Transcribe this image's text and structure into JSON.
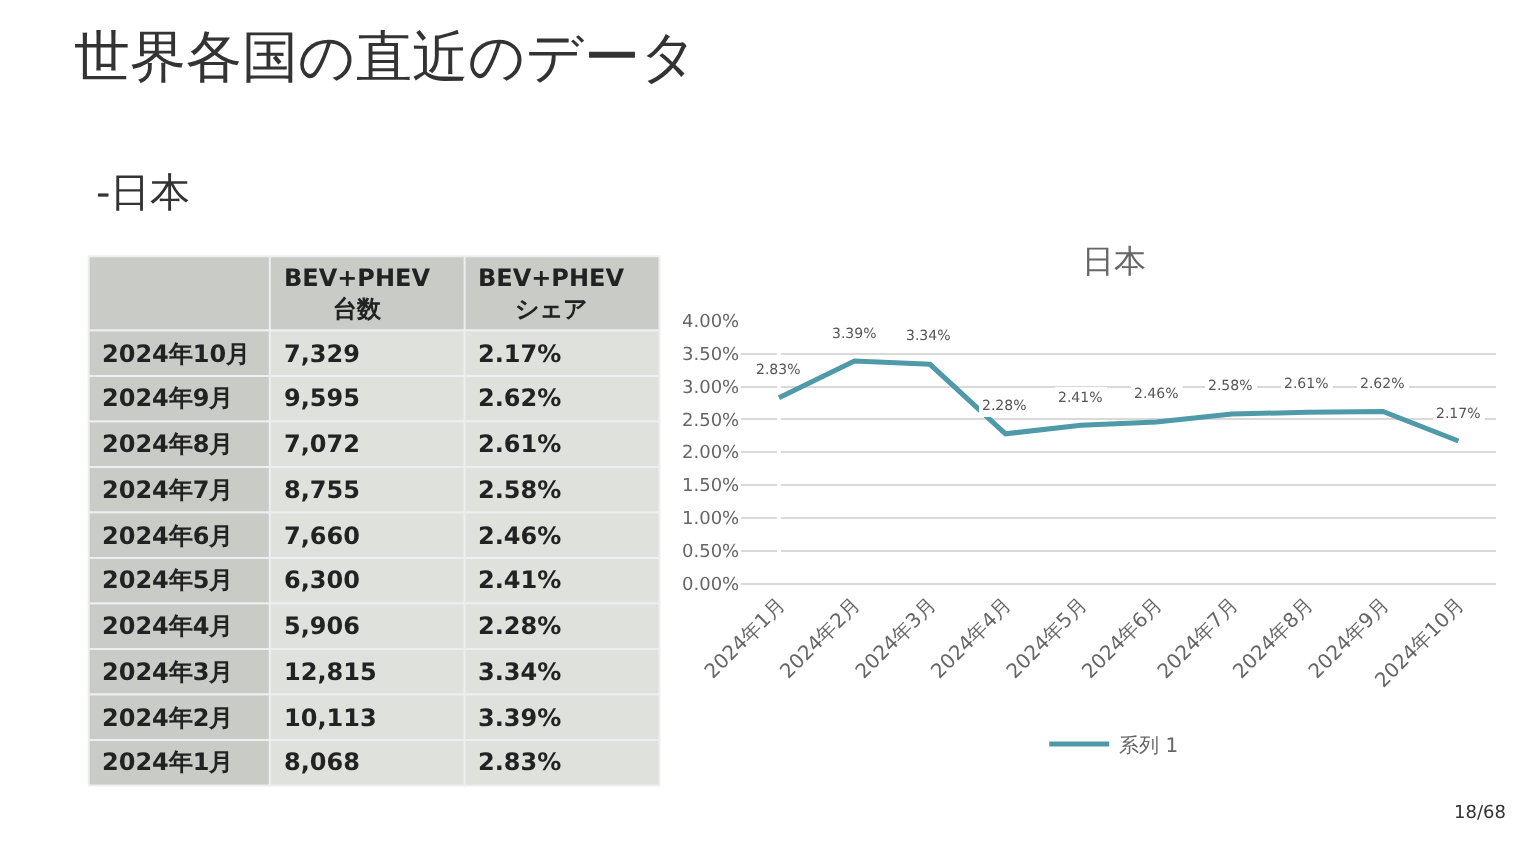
{
  "chart_data": [
    {
      "type": "other",
      "title": "世界各国の直近のデータ",
      "subtitle": "-日本",
      "categories": [
        "BEV+PHEV\n台数",
        "BEV+PHEV\nシェア"
      ],
      "y_categories": [
        "2024年10月",
        "2024年9月",
        "2024年8月",
        "2024年7月",
        "2024年6月",
        "2024年5月",
        "2024年4月",
        "2024年3月",
        "2024年2月",
        "2024年1月"
      ],
      "cells": [
        [
          "7,329",
          "2.17%"
        ],
        [
          "9,595",
          "2.62%"
        ],
        [
          "7,072",
          "2.61%"
        ],
        [
          "8,755",
          "2.58%"
        ],
        [
          "7,660",
          "2.46%"
        ],
        [
          "6,300",
          "2.41%"
        ],
        [
          "5,906",
          "2.28%"
        ],
        [
          "12,815",
          "3.34%"
        ],
        [
          "10,113",
          "3.39%"
        ],
        [
          "8,068",
          "2.83%"
        ]
      ]
    },
    {
      "type": "line",
      "title": "日本",
      "categories": [
        "2024年1月",
        "2024年2月",
        "2024年3月",
        "2024年4月",
        "2024年5月",
        "2024年6月",
        "2024年7月",
        "2024年8月",
        "2024年9月",
        "2024年10月"
      ],
      "series": [
        {
          "name": "系列 1",
          "color": "#4e9aa8",
          "values": [
            2.83,
            3.39,
            3.34,
            2.28,
            2.41,
            2.46,
            2.58,
            2.61,
            2.62,
            2.17
          ],
          "value_labels": [
            "2.83%",
            "3.39%",
            "3.34%",
            "2.28%",
            "2.41%",
            "2.46%",
            "2.58%",
            "2.61%",
            "2.62%",
            "2.17%"
          ]
        }
      ],
      "ylim": [
        0,
        4
      ],
      "yticks": [
        {
          "value": 0,
          "label": "0.00%"
        },
        {
          "value": 0.5,
          "label": "0.50%"
        },
        {
          "value": 1,
          "label": "1.00%"
        },
        {
          "value": 1.5,
          "label": "1.50%"
        },
        {
          "value": 2,
          "label": "2.00%"
        },
        {
          "value": 2.5,
          "label": "2.50%"
        },
        {
          "value": 3,
          "label": "3.00%"
        },
        {
          "value": 3.5,
          "label": "3.50%"
        },
        {
          "value": 4,
          "label": "4.00%"
        }
      ],
      "grid": "y",
      "legend": "bottom",
      "marker": "none",
      "line_style": "solid",
      "annotations": [
        "18/68"
      ]
    }
  ]
}
